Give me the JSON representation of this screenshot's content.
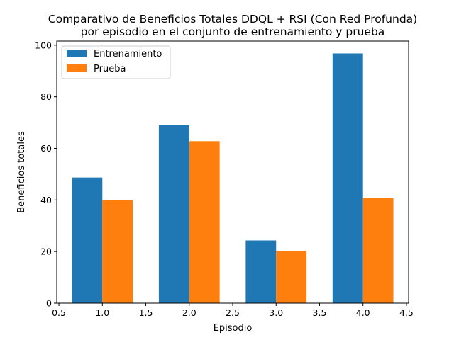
{
  "chart_data": {
    "type": "bar",
    "title": "Comparativo de Beneficios Totales DDQL + RSI (Con Red Profunda)",
    "subtitle": "por episodio en el conjunto de entrenamiento y prueba",
    "xlabel": "Episodio",
    "ylabel": "Beneficios totales",
    "categories": [
      1,
      2,
      3,
      4
    ],
    "series": [
      {
        "name": "Entrenamiento",
        "color": "#1f77b4",
        "values": [
          48.7,
          69.0,
          24.3,
          96.8
        ]
      },
      {
        "name": "Prueba",
        "color": "#ff7f0e",
        "values": [
          40.0,
          62.8,
          20.2,
          40.8
        ]
      }
    ],
    "bar_width": 0.35,
    "xlim": [
      0.475,
      4.525
    ],
    "ylim": [
      0,
      101.6
    ],
    "xticks": [
      "0.5",
      "1.0",
      "1.5",
      "2.0",
      "2.5",
      "3.0",
      "3.5",
      "4.0",
      "4.5"
    ],
    "xtick_values": [
      0.5,
      1.0,
      1.5,
      2.0,
      2.5,
      3.0,
      3.5,
      4.0,
      4.5
    ],
    "yticks": [
      "0",
      "20",
      "40",
      "60",
      "80",
      "100"
    ],
    "ytick_values": [
      0,
      20,
      40,
      60,
      80,
      100
    ],
    "grid": false,
    "legend_position": "upper-left"
  }
}
